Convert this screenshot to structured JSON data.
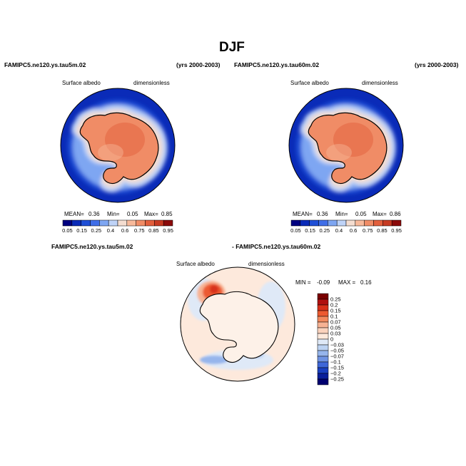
{
  "figure": {
    "title": "DJF",
    "panels": [
      {
        "case_left": "FAMIPC5.ne120.ys.tau5m.02",
        "case_right": "(yrs 2000-2003)",
        "variable": "Surface albedo",
        "units": "dimensionless",
        "stats": {
          "mean_label": "MEAN=",
          "mean": "0.36",
          "min_label": "Min=",
          "min": "0.05",
          "max_label": "Max=",
          "max": "0.85"
        }
      },
      {
        "case_left": "FAMIPC5.ne120.ys.tau60m.02",
        "case_right": "(yrs 2000-2003)",
        "variable": "Surface albedo",
        "units": "dimensionless",
        "stats": {
          "mean_label": "MEAN=",
          "mean": "0.36",
          "min_label": "Min=",
          "min": "0.05",
          "max_label": "Max=",
          "max": "0.86"
        }
      }
    ],
    "diff": {
      "case_left": "FAMIPC5.ne120.ys.tau5m.02",
      "case_right": "- FAMIPC5.ne120.ys.tau60m.02",
      "variable": "Surface albedo",
      "units": "dimensionless",
      "min_label": "MIN =",
      "min": "-0.09",
      "max_label": "MAX =",
      "max": "0.16"
    }
  },
  "chart_data": [
    {
      "type": "heatmap",
      "projection": "south-polar-stereographic",
      "levels": [
        0.05,
        0.15,
        0.25,
        0.4,
        0.6,
        0.75,
        0.85,
        0.95
      ],
      "tick_labels": [
        "0.05",
        "0.15",
        "0.25",
        "0.4",
        "0.6",
        "0.75",
        "0.85",
        "0.95"
      ],
      "colors": [
        "#000080",
        "#0a2bb8",
        "#1f4fd6",
        "#3f6ee8",
        "#7ea6f2",
        "#bfd3f7",
        "#f4ddd0",
        "#f7b99a",
        "#f08c66",
        "#e25f3c",
        "#c63a22",
        "#8b0a0a"
      ],
      "legend": "bottom"
    },
    {
      "type": "heatmap",
      "projection": "south-polar-stereographic",
      "levels": [
        0.05,
        0.15,
        0.25,
        0.4,
        0.6,
        0.75,
        0.85,
        0.95
      ],
      "tick_labels": [
        "0.05",
        "0.15",
        "0.25",
        "0.4",
        "0.6",
        "0.75",
        "0.85",
        "0.95"
      ],
      "colors": [
        "#000080",
        "#0a2bb8",
        "#1f4fd6",
        "#3f6ee8",
        "#7ea6f2",
        "#bfd3f7",
        "#f4ddd0",
        "#f7b99a",
        "#f08c66",
        "#e25f3c",
        "#c63a22",
        "#8b0a0a"
      ],
      "legend": "bottom"
    },
    {
      "type": "heatmap",
      "projection": "south-polar-stereographic",
      "levels": [
        0.25,
        0.2,
        0.15,
        0.1,
        0.07,
        0.05,
        0.03,
        0,
        -0.03,
        -0.05,
        -0.07,
        -0.1,
        -0.15,
        -0.2,
        -0.25
      ],
      "tick_labels": [
        "0.25",
        "0.2",
        "0.15",
        "0.1",
        "0.07",
        "0.05",
        "0.03",
        "0",
        "−0.03",
        "−0.05",
        "−0.07",
        "−0.1",
        "−0.15",
        "−0.2",
        "−0.25"
      ],
      "colors": [
        "#7a0000",
        "#b01010",
        "#d8301a",
        "#ec5a30",
        "#f38a5e",
        "#f7b293",
        "#fad2bd",
        "#fde9dc",
        "#dfe9f7",
        "#bcd2f2",
        "#96b5ec",
        "#6f93e3",
        "#3e67d8",
        "#1a40c0",
        "#0a1f9a",
        "#000070"
      ],
      "legend": "right"
    }
  ]
}
